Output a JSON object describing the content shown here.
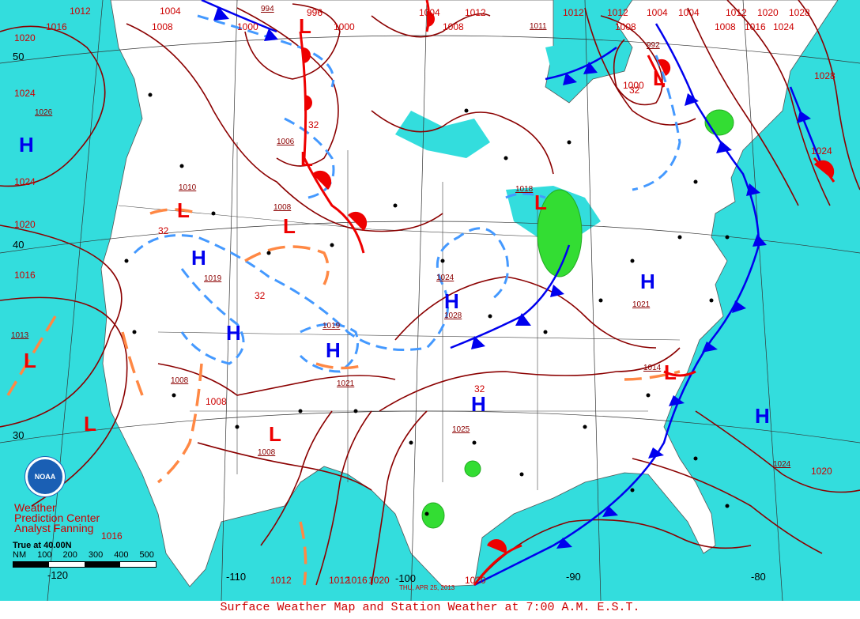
{
  "caption": "Surface Weather Map and Station Weather at 7:00 A.M. E.S.T.",
  "date_stamp": "THU, APR 25, 2013",
  "credit": [
    "Weather",
    "Prediction Center",
    "Analyst Fanning"
  ],
  "scale": {
    "title": "True at 40.00N",
    "units": "NM",
    "ticks": [
      "100",
      "200",
      "300",
      "400",
      "500"
    ]
  },
  "logo_text": "NOAA",
  "colors": {
    "ocean": "#33dddd",
    "land": "#ffffff",
    "isobar": "#8b0000",
    "high": "#0000ee",
    "low": "#ee0000",
    "precip": "#33dd33",
    "trough": "#ff8844",
    "isotherm": "#4499ff"
  },
  "lat_labels": [
    "50",
    "40",
    "30"
  ],
  "lon_labels": [
    "-120",
    "-110",
    "-100",
    "-90",
    "-80"
  ],
  "pressure_centers": [
    {
      "type": "H",
      "value": "1026"
    },
    {
      "type": "L",
      "value": "1013"
    },
    {
      "type": "L",
      "value": "1006"
    },
    {
      "type": "L",
      "value": "994"
    },
    {
      "type": "L",
      "value": "1010"
    },
    {
      "type": "H",
      "value": "1019"
    },
    {
      "type": "H",
      "value": "1019"
    },
    {
      "type": "L",
      "value": "1008"
    },
    {
      "type": "H",
      "value": "1021"
    },
    {
      "type": "H",
      "value": "1024"
    },
    {
      "type": "H",
      "value": "1025"
    },
    {
      "type": "L",
      "value": "1008"
    },
    {
      "type": "H",
      "value": "1021"
    },
    {
      "type": "L",
      "value": "1018"
    },
    {
      "type": "L",
      "value": "992"
    },
    {
      "type": "L",
      "value": "1008"
    },
    {
      "type": "H",
      "value": "1024"
    },
    {
      "type": "L",
      "value": "1014"
    },
    {
      "type": "H",
      "value": "1028"
    },
    {
      "type": "H",
      "value": "1011"
    }
  ],
  "isobar_labels": [
    "1012",
    "1016",
    "1020",
    "1024",
    "1028",
    "1004",
    "1008",
    "1000",
    "996",
    "992"
  ],
  "isotherm_label": "32"
}
